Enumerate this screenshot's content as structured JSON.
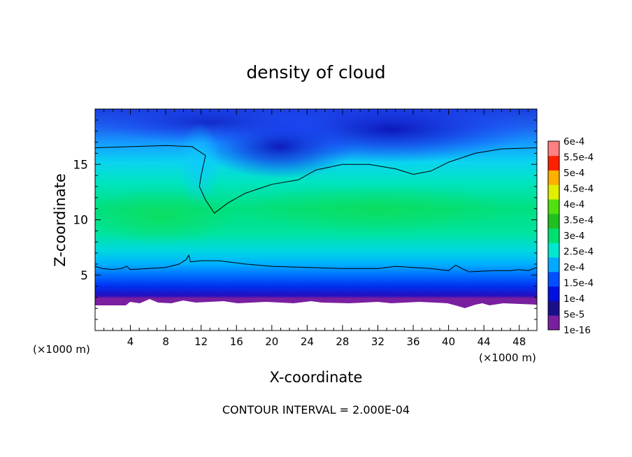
{
  "chart_data": {
    "type": "heatmap",
    "title": "density of cloud",
    "xlabel": "X-coordinate",
    "ylabel": "Z-coordinate",
    "x_unit_left": "(×1000 m)",
    "x_unit_right": "(×1000 m)",
    "footer": "CONTOUR INTERVAL = 2.000E-04",
    "xlim": [
      0,
      50
    ],
    "ylim": [
      0,
      20
    ],
    "x_ticks": [
      4,
      8,
      12,
      16,
      20,
      24,
      28,
      32,
      36,
      40,
      44,
      48
    ],
    "y_ticks": [
      5,
      10,
      15
    ],
    "colorbar": {
      "labels": [
        "1e-16",
        "5e-5",
        "1e-4",
        "1.5e-4",
        "2e-4",
        "2.5e-4",
        "3e-4",
        "3.5e-4",
        "4e-4",
        "4.5e-4",
        "5e-4",
        "5.5e-4",
        "6e-4"
      ],
      "colors": [
        "#7a1fa0",
        "#1a0f8a",
        "#0010e0",
        "#0050ff",
        "#00aaff",
        "#00e8d0",
        "#00e070",
        "#20c020",
        "#50e010",
        "#e0f000",
        "#ffb000",
        "#ff2000",
        "#ff8080"
      ]
    },
    "contour_lines": [
      {
        "level": 0.0002,
        "points": [
          [
            0,
            16.5
          ],
          [
            4,
            16.6
          ],
          [
            8,
            16.7
          ],
          [
            11,
            16.6
          ],
          [
            12.5,
            15.8
          ],
          [
            12,
            14
          ],
          [
            11.8,
            13
          ],
          [
            12.5,
            11.8
          ],
          [
            13.5,
            10.6
          ],
          [
            15,
            11.5
          ],
          [
            17,
            12.4
          ],
          [
            20,
            13.2
          ],
          [
            23,
            13.6
          ],
          [
            25,
            14.5
          ],
          [
            28,
            15.0
          ],
          [
            31,
            15.0
          ],
          [
            34,
            14.6
          ],
          [
            36,
            14.1
          ],
          [
            38,
            14.4
          ],
          [
            40,
            15.2
          ],
          [
            43,
            16.0
          ],
          [
            46,
            16.4
          ],
          [
            50,
            16.5
          ]
        ]
      },
      {
        "level": 0.0002,
        "points": [
          [
            0,
            5.8
          ],
          [
            0.8,
            5.6
          ],
          [
            2,
            5.5
          ],
          [
            3,
            5.6
          ],
          [
            3.6,
            5.8
          ],
          [
            4,
            5.5
          ],
          [
            6,
            5.6
          ],
          [
            8,
            5.7
          ],
          [
            9.5,
            6.0
          ],
          [
            10.3,
            6.4
          ],
          [
            10.6,
            6.8
          ],
          [
            10.8,
            6.2
          ],
          [
            12,
            6.3
          ],
          [
            14,
            6.3
          ],
          [
            17,
            6.0
          ],
          [
            20,
            5.8
          ],
          [
            24,
            5.7
          ],
          [
            28,
            5.6
          ],
          [
            32,
            5.6
          ],
          [
            34,
            5.8
          ],
          [
            36,
            5.7
          ],
          [
            38,
            5.6
          ],
          [
            40,
            5.4
          ],
          [
            40.8,
            5.9
          ],
          [
            41.5,
            5.6
          ],
          [
            42.3,
            5.3
          ],
          [
            45,
            5.4
          ],
          [
            47,
            5.4
          ],
          [
            48,
            5.5
          ],
          [
            49,
            5.4
          ],
          [
            50,
            5.7
          ]
        ]
      }
    ]
  }
}
